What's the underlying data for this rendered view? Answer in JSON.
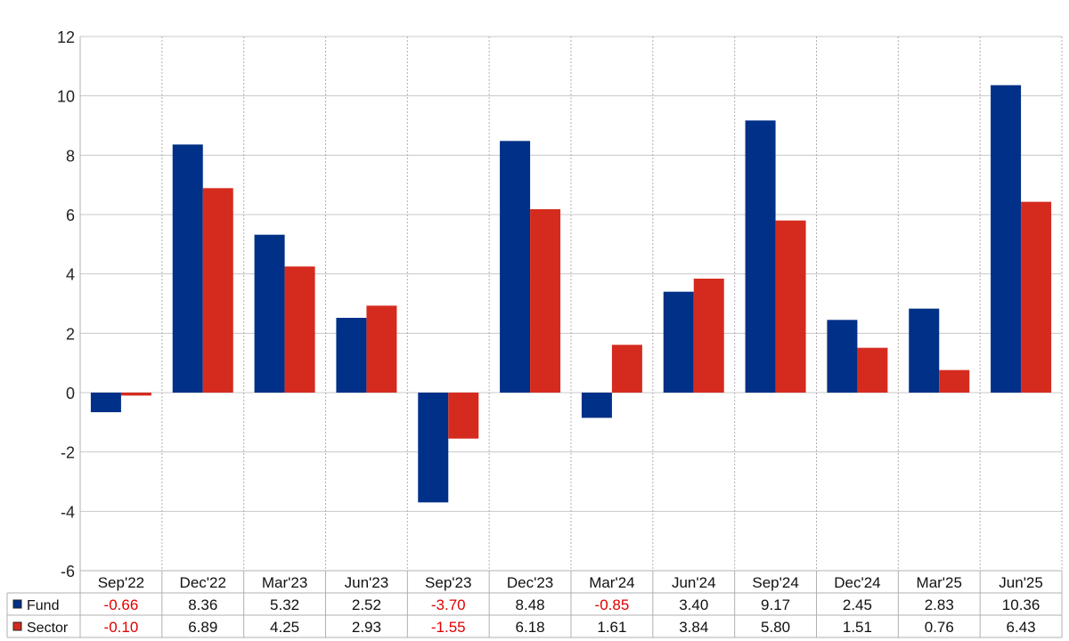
{
  "chart_data": {
    "type": "bar",
    "categories": [
      "Sep'22",
      "Dec'22",
      "Mar'23",
      "Jun'23",
      "Sep'23",
      "Dec'23",
      "Mar'24",
      "Jun'24",
      "Sep'24",
      "Dec'24",
      "Mar'25",
      "Jun'25"
    ],
    "series": [
      {
        "name": "Fund",
        "color": "#003087",
        "values": [
          -0.66,
          8.36,
          5.32,
          2.52,
          -3.7,
          8.48,
          -0.85,
          3.4,
          9.17,
          2.45,
          2.83,
          10.36
        ],
        "labels": [
          "-0.66",
          "8.36",
          "5.32",
          "2.52",
          "-3.70",
          "8.48",
          "-0.85",
          "3.40",
          "9.17",
          "2.45",
          "2.83",
          "10.36"
        ]
      },
      {
        "name": "Sector",
        "color": "#d52b1e",
        "values": [
          -0.1,
          6.89,
          4.25,
          2.93,
          -1.55,
          6.18,
          1.61,
          3.84,
          5.8,
          1.51,
          0.76,
          6.43
        ],
        "labels": [
          "-0.10",
          "6.89",
          "4.25",
          "2.93",
          "-1.55",
          "6.18",
          "1.61",
          "3.84",
          "5.80",
          "1.51",
          "0.76",
          "6.43"
        ]
      }
    ],
    "yticks": [
      "12",
      "10",
      "8",
      "6",
      "4",
      "2",
      "0",
      "-2",
      "-4",
      "-6"
    ],
    "ylim": [
      -6,
      12
    ],
    "grid": true,
    "negative_label_color": "#e00000",
    "legend_placement": "data-table-left"
  }
}
